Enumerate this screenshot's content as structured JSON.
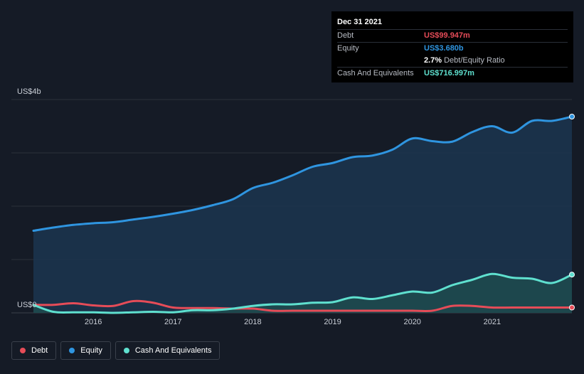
{
  "chart_data": {
    "type": "area",
    "y_top_label": "US$4b",
    "y_bottom_label": "US$0",
    "ylim": [
      0,
      4.0
    ],
    "xlim": [
      2015.25,
      2022.0
    ],
    "x_ticks": [
      {
        "label": "2016",
        "x": 2016
      },
      {
        "label": "2017",
        "x": 2017
      },
      {
        "label": "2018",
        "x": 2018
      },
      {
        "label": "2019",
        "x": 2019
      },
      {
        "label": "2020",
        "x": 2020
      },
      {
        "label": "2021",
        "x": 2021
      }
    ],
    "grid": true,
    "colors": {
      "debt": "#e64c58",
      "equity": "#2f95e0",
      "equity_fill": "#1b3550",
      "cash": "#5fe0cf",
      "cash_fill": "#1e4d4f"
    },
    "series": [
      {
        "name": "Debt",
        "key": "debt",
        "points": [
          [
            2015.25,
            0.15
          ],
          [
            2015.5,
            0.15
          ],
          [
            2015.75,
            0.18
          ],
          [
            2016.0,
            0.14
          ],
          [
            2016.25,
            0.13
          ],
          [
            2016.5,
            0.22
          ],
          [
            2016.75,
            0.19
          ],
          [
            2017.0,
            0.1
          ],
          [
            2017.25,
            0.09
          ],
          [
            2017.5,
            0.09
          ],
          [
            2017.75,
            0.08
          ],
          [
            2018.0,
            0.08
          ],
          [
            2018.25,
            0.04
          ],
          [
            2018.5,
            0.04
          ],
          [
            2018.75,
            0.04
          ],
          [
            2019.0,
            0.04
          ],
          [
            2019.25,
            0.04
          ],
          [
            2019.5,
            0.04
          ],
          [
            2019.75,
            0.04
          ],
          [
            2020.0,
            0.04
          ],
          [
            2020.25,
            0.04
          ],
          [
            2020.5,
            0.13
          ],
          [
            2020.75,
            0.13
          ],
          [
            2021.0,
            0.1
          ],
          [
            2021.25,
            0.1
          ],
          [
            2021.5,
            0.1
          ],
          [
            2021.75,
            0.1
          ],
          [
            2022.0,
            0.1
          ]
        ]
      },
      {
        "name": "Equity",
        "key": "equity",
        "points": [
          [
            2015.25,
            1.54
          ],
          [
            2015.5,
            1.6
          ],
          [
            2015.75,
            1.65
          ],
          [
            2016.0,
            1.68
          ],
          [
            2016.25,
            1.7
          ],
          [
            2016.5,
            1.75
          ],
          [
            2016.75,
            1.8
          ],
          [
            2017.0,
            1.86
          ],
          [
            2017.25,
            1.93
          ],
          [
            2017.5,
            2.02
          ],
          [
            2017.75,
            2.13
          ],
          [
            2018.0,
            2.34
          ],
          [
            2018.25,
            2.44
          ],
          [
            2018.5,
            2.58
          ],
          [
            2018.75,
            2.74
          ],
          [
            2019.0,
            2.81
          ],
          [
            2019.25,
            2.92
          ],
          [
            2019.5,
            2.95
          ],
          [
            2019.75,
            3.06
          ],
          [
            2020.0,
            3.27
          ],
          [
            2020.25,
            3.22
          ],
          [
            2020.5,
            3.21
          ],
          [
            2020.75,
            3.39
          ],
          [
            2021.0,
            3.5
          ],
          [
            2021.25,
            3.38
          ],
          [
            2021.5,
            3.6
          ],
          [
            2021.75,
            3.6
          ],
          [
            2022.0,
            3.68
          ]
        ]
      },
      {
        "name": "Cash And Equivalents",
        "key": "cash",
        "points": [
          [
            2015.25,
            0.15
          ],
          [
            2015.5,
            0.02
          ],
          [
            2015.75,
            0.01
          ],
          [
            2016.0,
            0.01
          ],
          [
            2016.25,
            0.0
          ],
          [
            2016.5,
            0.01
          ],
          [
            2016.75,
            0.02
          ],
          [
            2017.0,
            0.01
          ],
          [
            2017.25,
            0.05
          ],
          [
            2017.5,
            0.05
          ],
          [
            2017.75,
            0.08
          ],
          [
            2018.0,
            0.13
          ],
          [
            2018.25,
            0.16
          ],
          [
            2018.5,
            0.16
          ],
          [
            2018.75,
            0.19
          ],
          [
            2019.0,
            0.2
          ],
          [
            2019.25,
            0.29
          ],
          [
            2019.5,
            0.26
          ],
          [
            2019.75,
            0.33
          ],
          [
            2020.0,
            0.4
          ],
          [
            2020.25,
            0.38
          ],
          [
            2020.5,
            0.52
          ],
          [
            2020.75,
            0.62
          ],
          [
            2021.0,
            0.73
          ],
          [
            2021.25,
            0.66
          ],
          [
            2021.5,
            0.64
          ],
          [
            2021.75,
            0.56
          ],
          [
            2022.0,
            0.717
          ]
        ]
      }
    ]
  },
  "tooltip": {
    "date": "Dec 31 2021",
    "debt_label": "Debt",
    "debt_value": "US$99.947m",
    "equity_label": "Equity",
    "equity_value": "US$3.680b",
    "ratio_value": "2.7%",
    "ratio_label": "Debt/Equity Ratio",
    "cash_label": "Cash And Equivalents",
    "cash_value": "US$716.997m"
  },
  "legend": [
    {
      "label": "Debt",
      "color": "#e64c58"
    },
    {
      "label": "Equity",
      "color": "#2f95e0"
    },
    {
      "label": "Cash And Equivalents",
      "color": "#5fe0cf"
    }
  ]
}
